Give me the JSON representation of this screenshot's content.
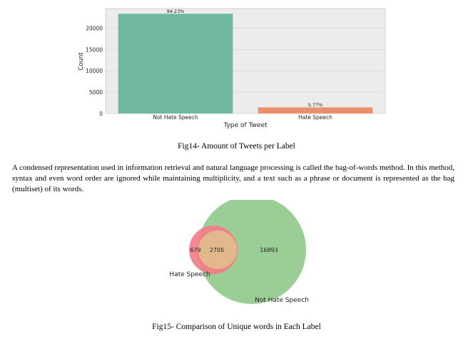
{
  "bar_chart": {
    "chart_data": {
      "type": "bar",
      "categories": [
        "Not Hate Speech",
        "Hate Speech"
      ],
      "values": [
        23384,
        1431
      ],
      "data_labels": [
        "94.23%",
        "5.77%"
      ],
      "xlabel": "Type of Tweet",
      "ylabel": "Count",
      "ylim": [
        0,
        24600
      ],
      "yticks": [
        0,
        5000,
        10000,
        15000,
        20000
      ],
      "grid": true,
      "colors": [
        "#6fb79d",
        "#e9906c"
      ],
      "background": "#ececec"
    }
  },
  "fig14_caption": "Fig14- Amount of Tweets per Label",
  "paragraph": "A condensed representation used in information retrieval and natural language processing is called the bag-of-words method. In this method, syntax and even word order are ignored while maintaining multiplicity, and a text such as a phrase or document is represented as the bag (multiset) of its words.",
  "venn": {
    "set_labels": [
      "Hate Speech",
      "Not Hate Speech"
    ],
    "left_only": "679",
    "overlap": "2705",
    "right_only": "16893",
    "colors": {
      "left": "#f47c86",
      "right": "#8fc98a",
      "overlap": "#e3b88c"
    }
  },
  "fig15_caption": "Fig15- Comparison of Unique words in Each Label"
}
